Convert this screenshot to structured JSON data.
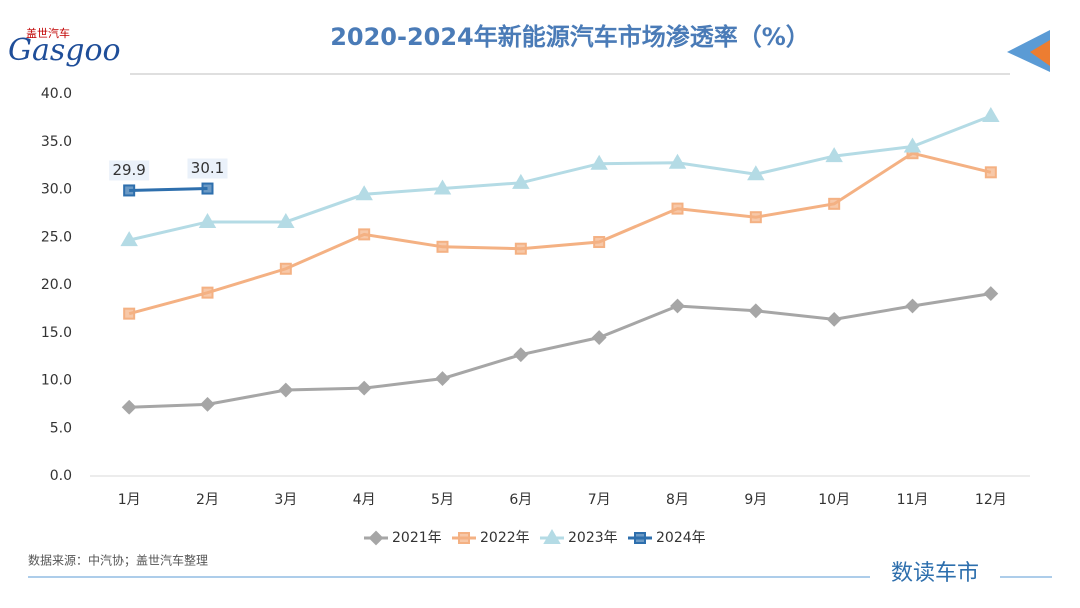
{
  "brand": {
    "name": "盖世汽车",
    "logo": "Gasgoo"
  },
  "source": "数据来源：中汽协；盖世汽车整理",
  "footer": "数读车市",
  "chart_data": {
    "type": "line",
    "title": "2020-2024年新能源汽车市场渗透率（%）",
    "categories": [
      "1月",
      "2月",
      "3月",
      "4月",
      "5月",
      "6月",
      "7月",
      "8月",
      "9月",
      "10月",
      "11月",
      "12月"
    ],
    "series": [
      {
        "name": "2021年",
        "color": "#a6a6a6",
        "marker": "diamond",
        "values": [
          7.2,
          7.5,
          9.0,
          9.2,
          10.2,
          12.7,
          14.5,
          17.8,
          17.3,
          16.4,
          17.8,
          19.1
        ]
      },
      {
        "name": "2022年",
        "color": "#f4b183",
        "marker": "square",
        "values": [
          17.0,
          19.2,
          21.7,
          25.3,
          24.0,
          23.8,
          24.5,
          28.0,
          27.1,
          28.5,
          33.8,
          31.8
        ]
      },
      {
        "name": "2023年",
        "color": "#b4dbe5",
        "marker": "triangle",
        "values": [
          24.7,
          26.6,
          26.6,
          29.5,
          30.1,
          30.7,
          32.7,
          32.8,
          31.6,
          33.5,
          34.5,
          37.7
        ]
      },
      {
        "name": "2024年",
        "color": "#2e6fad",
        "marker": "square",
        "data_labels": true,
        "values": [
          29.9,
          30.1,
          null,
          null,
          null,
          null,
          null,
          null,
          null,
          null,
          null,
          null
        ]
      }
    ],
    "ylim": [
      0,
      40
    ],
    "yticks": [
      {
        "value": 0,
        "label": "0.0"
      },
      {
        "value": 5,
        "label": "5.0"
      },
      {
        "value": 10,
        "label": "10.0"
      },
      {
        "value": 15,
        "label": "15.0"
      },
      {
        "value": 20,
        "label": "20.0"
      },
      {
        "value": 25,
        "label": "25.0"
      },
      {
        "value": 30,
        "label": "30.0"
      },
      {
        "value": 35,
        "label": "35.0"
      },
      {
        "value": 40,
        "label": "40.0"
      }
    ],
    "legend": "bottom"
  }
}
